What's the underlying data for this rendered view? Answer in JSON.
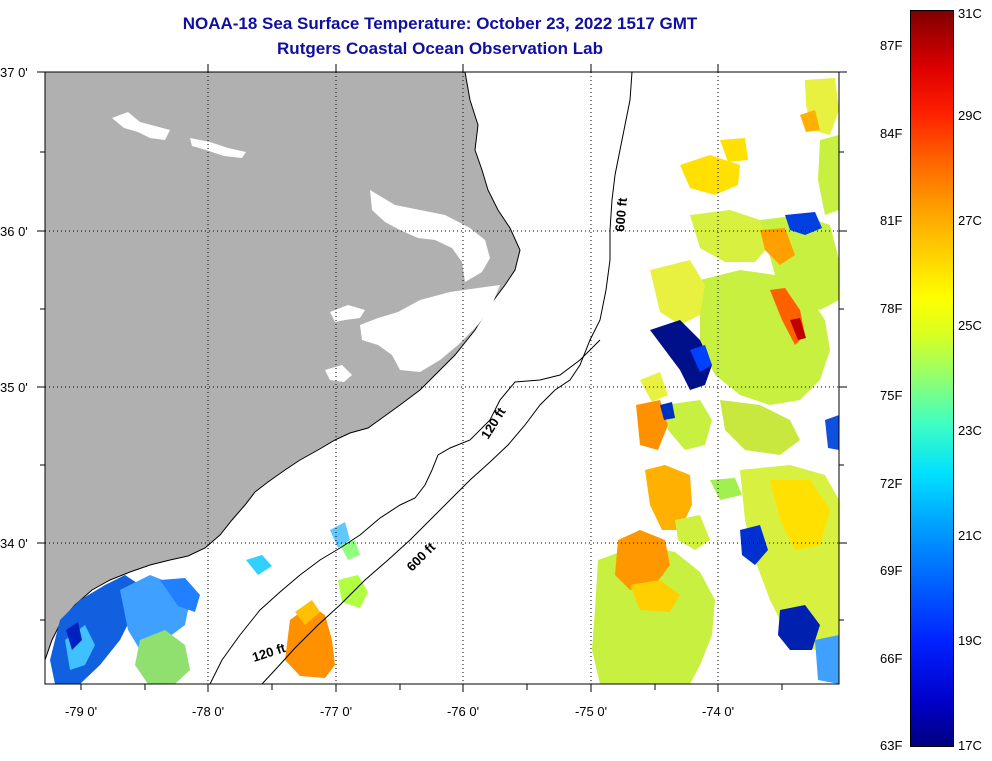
{
  "title": {
    "line1": "NOAA-18 Sea Surface Temperature:  October 23, 2022 1517 GMT",
    "line2": "Rutgers Coastal Ocean Observation Lab"
  },
  "map": {
    "lat_labels": [
      "37 0'",
      "36 0'",
      "35 0'",
      "34 0'"
    ],
    "lon_labels": [
      "-79 0'",
      "-78 0'",
      "-77 0'",
      "-76 0'",
      "-75 0'",
      "-74 0'"
    ],
    "isobath_labels": [
      "600 ft",
      "120 ft",
      "600 ft",
      "120 ft"
    ],
    "colors": {
      "land": "#b0b0b0",
      "ocean_nodata": "#ffffff",
      "title": "#1010a0"
    }
  },
  "colorbar": {
    "fahrenheit": [
      "87F",
      "84F",
      "81F",
      "78F",
      "75F",
      "72F",
      "69F",
      "66F",
      "63F"
    ],
    "celsius": [
      "31C",
      "29C",
      "27C",
      "25C",
      "23C",
      "21C",
      "19C",
      "17C"
    ],
    "range_f": [
      63,
      88
    ],
    "range_c": [
      17,
      31
    ]
  }
}
